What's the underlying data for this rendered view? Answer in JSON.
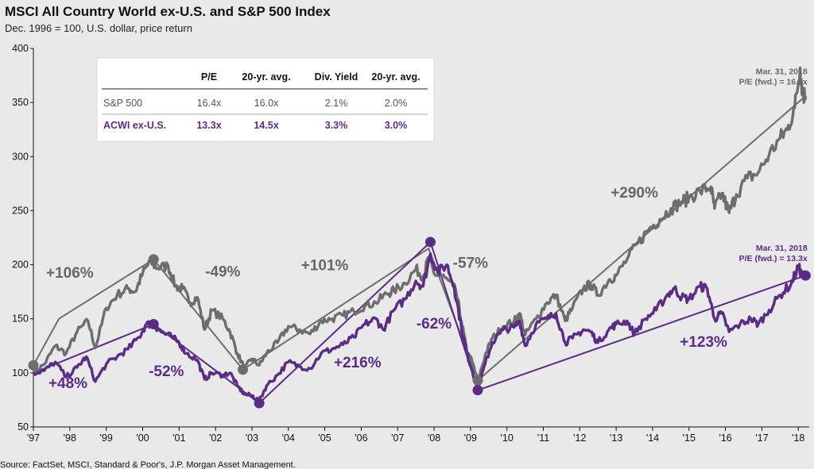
{
  "chart_data": {
    "type": "line",
    "title": "MSCI All Country World ex-U.S. and S&P 500 Index",
    "subtitle": "Dec. 1996 = 100, U.S. dollar, price return",
    "source": "Source: FactSet, MSCI, Standard & Poor's, J.P. Morgan Asset Management.",
    "ylim": [
      50,
      400
    ],
    "xlim": [
      1997,
      2018.3
    ],
    "y_ticks": [
      50,
      100,
      150,
      200,
      250,
      300,
      350,
      400
    ],
    "x_ticks": [
      {
        "label": "'97",
        "value": 1997
      },
      {
        "label": "'98",
        "value": 1998
      },
      {
        "label": "'99",
        "value": 1999
      },
      {
        "label": "'00",
        "value": 2000
      },
      {
        "label": "'01",
        "value": 2001
      },
      {
        "label": "'02",
        "value": 2002
      },
      {
        "label": "'03",
        "value": 2003
      },
      {
        "label": "'04",
        "value": 2004
      },
      {
        "label": "'05",
        "value": 2005
      },
      {
        "label": "'06",
        "value": 2006
      },
      {
        "label": "'07",
        "value": 2007
      },
      {
        "label": "'08",
        "value": 2008
      },
      {
        "label": "'09",
        "value": 2009
      },
      {
        "label": "'10",
        "value": 2010
      },
      {
        "label": "'11",
        "value": 2011
      },
      {
        "label": "'12",
        "value": 2012
      },
      {
        "label": "'13",
        "value": 2013
      },
      {
        "label": "'14",
        "value": 2014
      },
      {
        "label": "'15",
        "value": 2015
      },
      {
        "label": "'16",
        "value": 2016
      },
      {
        "label": "'17",
        "value": 2017
      },
      {
        "label": "'18",
        "value": 2018
      }
    ],
    "series": [
      {
        "name": "S&P 500",
        "color": "#6d6d6d",
        "points": [
          [
            1997.0,
            100
          ],
          [
            1997.3,
            108
          ],
          [
            1997.6,
            125
          ],
          [
            1997.9,
            118
          ],
          [
            1998.2,
            138
          ],
          [
            1998.5,
            148
          ],
          [
            1998.7,
            123
          ],
          [
            1999.0,
            160
          ],
          [
            1999.3,
            172
          ],
          [
            1999.6,
            178
          ],
          [
            1999.8,
            175
          ],
          [
            2000.0,
            192
          ],
          [
            2000.2,
            203
          ],
          [
            2000.4,
            197
          ],
          [
            2000.7,
            199
          ],
          [
            2000.9,
            180
          ],
          [
            2001.1,
            178
          ],
          [
            2001.3,
            165
          ],
          [
            2001.5,
            170
          ],
          [
            2001.7,
            140
          ],
          [
            2001.9,
            158
          ],
          [
            2002.2,
            150
          ],
          [
            2002.4,
            138
          ],
          [
            2002.6,
            118
          ],
          [
            2002.8,
            104
          ],
          [
            2003.0,
            113
          ],
          [
            2003.2,
            107
          ],
          [
            2003.4,
            118
          ],
          [
            2003.7,
            128
          ],
          [
            2004.0,
            143
          ],
          [
            2004.3,
            140
          ],
          [
            2004.6,
            136
          ],
          [
            2004.9,
            148
          ],
          [
            2005.2,
            150
          ],
          [
            2005.5,
            153
          ],
          [
            2005.8,
            157
          ],
          [
            2006.1,
            162
          ],
          [
            2006.4,
            165
          ],
          [
            2006.7,
            173
          ],
          [
            2006.9,
            176
          ],
          [
            2007.2,
            183
          ],
          [
            2007.5,
            196
          ],
          [
            2007.7,
            189
          ],
          [
            2007.85,
            206
          ],
          [
            2008.0,
            192
          ],
          [
            2008.3,
            188
          ],
          [
            2008.6,
            176
          ],
          [
            2008.75,
            148
          ],
          [
            2008.9,
            120
          ],
          [
            2009.05,
            110
          ],
          [
            2009.2,
            92
          ],
          [
            2009.4,
            116
          ],
          [
            2009.6,
            132
          ],
          [
            2009.9,
            143
          ],
          [
            2010.2,
            148
          ],
          [
            2010.35,
            155
          ],
          [
            2010.5,
            135
          ],
          [
            2010.8,
            150
          ],
          [
            2011.1,
            165
          ],
          [
            2011.35,
            172
          ],
          [
            2011.6,
            148
          ],
          [
            2011.8,
            160
          ],
          [
            2012.1,
            178
          ],
          [
            2012.3,
            182
          ],
          [
            2012.5,
            172
          ],
          [
            2012.8,
            186
          ],
          [
            2013.0,
            190
          ],
          [
            2013.3,
            205
          ],
          [
            2013.6,
            220
          ],
          [
            2013.9,
            233
          ],
          [
            2014.2,
            242
          ],
          [
            2014.5,
            252
          ],
          [
            2014.8,
            258
          ],
          [
            2015.0,
            262
          ],
          [
            2015.3,
            268
          ],
          [
            2015.6,
            272
          ],
          [
            2015.7,
            252
          ],
          [
            2015.9,
            266
          ],
          [
            2016.1,
            248
          ],
          [
            2016.3,
            265
          ],
          [
            2016.6,
            280
          ],
          [
            2016.9,
            285
          ],
          [
            2017.2,
            302
          ],
          [
            2017.5,
            317
          ],
          [
            2017.7,
            325
          ],
          [
            2017.9,
            345
          ],
          [
            2018.05,
            382
          ],
          [
            2018.12,
            358
          ],
          [
            2018.2,
            356
          ]
        ],
        "trend_points": [
          [
            1997.0,
            107
          ],
          [
            1997.7,
            150
          ],
          [
            2000.3,
            205
          ],
          [
            2002.75,
            103
          ],
          [
            2007.85,
            215
          ],
          [
            2009.2,
            93
          ],
          [
            2018.2,
            356
          ]
        ],
        "markers": [
          [
            1997.0,
            107
          ],
          [
            2000.3,
            205
          ],
          [
            2002.75,
            103
          ],
          [
            2009.2,
            93
          ]
        ]
      },
      {
        "name": "ACWI ex-U.S.",
        "color": "#5b2c86",
        "points": [
          [
            1997.0,
            100
          ],
          [
            1997.3,
            102
          ],
          [
            1997.6,
            110
          ],
          [
            1997.9,
            96
          ],
          [
            1998.2,
            105
          ],
          [
            1998.45,
            115
          ],
          [
            1998.7,
            92
          ],
          [
            1999.0,
            108
          ],
          [
            1999.3,
            115
          ],
          [
            1999.6,
            122
          ],
          [
            1999.9,
            133
          ],
          [
            2000.1,
            145
          ],
          [
            2000.3,
            145
          ],
          [
            2000.5,
            138
          ],
          [
            2000.8,
            133
          ],
          [
            2001.0,
            128
          ],
          [
            2001.2,
            118
          ],
          [
            2001.5,
            112
          ],
          [
            2001.7,
            94
          ],
          [
            2001.9,
            100
          ],
          [
            2002.2,
            98
          ],
          [
            2002.4,
            100
          ],
          [
            2002.6,
            88
          ],
          [
            2002.8,
            80
          ],
          [
            2003.0,
            79
          ],
          [
            2003.2,
            74
          ],
          [
            2003.4,
            88
          ],
          [
            2003.7,
            98
          ],
          [
            2004.0,
            110
          ],
          [
            2004.3,
            106
          ],
          [
            2004.6,
            104
          ],
          [
            2004.9,
            118
          ],
          [
            2005.2,
            122
          ],
          [
            2005.5,
            126
          ],
          [
            2005.8,
            133
          ],
          [
            2006.1,
            145
          ],
          [
            2006.4,
            150
          ],
          [
            2006.6,
            140
          ],
          [
            2006.9,
            158
          ],
          [
            2007.2,
            168
          ],
          [
            2007.5,
            185
          ],
          [
            2007.7,
            180
          ],
          [
            2007.9,
            210
          ],
          [
            2008.1,
            193
          ],
          [
            2008.35,
            200
          ],
          [
            2008.55,
            180
          ],
          [
            2008.75,
            142
          ],
          [
            2008.9,
            118
          ],
          [
            2009.05,
            102
          ],
          [
            2009.2,
            84
          ],
          [
            2009.4,
            108
          ],
          [
            2009.6,
            128
          ],
          [
            2009.9,
            140
          ],
          [
            2010.2,
            142
          ],
          [
            2010.35,
            148
          ],
          [
            2010.5,
            125
          ],
          [
            2010.8,
            145
          ],
          [
            2011.1,
            150
          ],
          [
            2011.35,
            155
          ],
          [
            2011.6,
            128
          ],
          [
            2011.8,
            132
          ],
          [
            2012.1,
            140
          ],
          [
            2012.3,
            138
          ],
          [
            2012.5,
            128
          ],
          [
            2012.8,
            140
          ],
          [
            2013.0,
            145
          ],
          [
            2013.3,
            148
          ],
          [
            2013.5,
            136
          ],
          [
            2013.8,
            150
          ],
          [
            2014.1,
            158
          ],
          [
            2014.4,
            172
          ],
          [
            2014.6,
            178
          ],
          [
            2014.8,
            170
          ],
          [
            2015.0,
            168
          ],
          [
            2015.3,
            180
          ],
          [
            2015.5,
            178
          ],
          [
            2015.7,
            150
          ],
          [
            2015.9,
            155
          ],
          [
            2016.1,
            138
          ],
          [
            2016.4,
            145
          ],
          [
            2016.7,
            150
          ],
          [
            2016.9,
            145
          ],
          [
            2017.2,
            158
          ],
          [
            2017.5,
            172
          ],
          [
            2017.8,
            182
          ],
          [
            2018.0,
            198
          ],
          [
            2018.1,
            190
          ],
          [
            2018.2,
            189
          ]
        ],
        "trend_points": [
          [
            1997.0,
            100
          ],
          [
            2000.3,
            145
          ],
          [
            2003.2,
            72
          ],
          [
            2007.9,
            221
          ],
          [
            2009.2,
            84
          ],
          [
            2018.2,
            190
          ]
        ],
        "markers": [
          [
            2000.3,
            145
          ],
          [
            2003.2,
            72
          ],
          [
            2007.9,
            221
          ],
          [
            2009.2,
            84
          ],
          [
            2018.2,
            190
          ]
        ]
      }
    ],
    "annotations": [
      {
        "text": "+106%",
        "x": 1998.0,
        "y": 188,
        "series": "S&P 500"
      },
      {
        "text": "-49%",
        "x": 2002.2,
        "y": 189,
        "series": "S&P 500"
      },
      {
        "text": "+101%",
        "x": 2005.0,
        "y": 195,
        "series": "S&P 500"
      },
      {
        "text": "-57%",
        "x": 2009.0,
        "y": 197,
        "series": "S&P 500"
      },
      {
        "text": "+290%",
        "x": 2013.5,
        "y": 262,
        "series": "S&P 500"
      },
      {
        "text": "+48%",
        "x": 1997.95,
        "y": 86,
        "series": "ACWI ex-U.S."
      },
      {
        "text": "-52%",
        "x": 2000.65,
        "y": 97,
        "series": "ACWI ex-U.S."
      },
      {
        "text": "+216%",
        "x": 2005.9,
        "y": 105,
        "series": "ACWI ex-U.S."
      },
      {
        "text": "-62%",
        "x": 2008.0,
        "y": 141,
        "series": "ACWI ex-U.S."
      },
      {
        "text": "+123%",
        "x": 2015.4,
        "y": 124,
        "series": "ACWI ex-U.S."
      }
    ],
    "callouts": [
      {
        "line1": "Mar. 31, 2018",
        "line2": "P/E (fwd.) = 16.4x",
        "x": 2018.25,
        "y": 376,
        "series": "S&P 500"
      },
      {
        "line1": "Mar. 31, 2018",
        "line2": "P/E (fwd.) = 13.3x",
        "x": 2018.25,
        "y": 213,
        "series": "ACWI ex-U.S."
      }
    ],
    "table": {
      "columns": [
        "",
        "P/E",
        "20-yr. avg.",
        "Div. Yield",
        "20-yr. avg."
      ],
      "rows": [
        {
          "label": "S&P 500",
          "values": [
            "16.4x",
            "16.0x",
            "2.1%",
            "2.0%"
          ],
          "series": "S&P 500"
        },
        {
          "label": "ACWI ex-U.S.",
          "values": [
            "13.3x",
            "14.5x",
            "3.3%",
            "3.0%"
          ],
          "series": "ACWI ex-U.S."
        }
      ]
    }
  }
}
